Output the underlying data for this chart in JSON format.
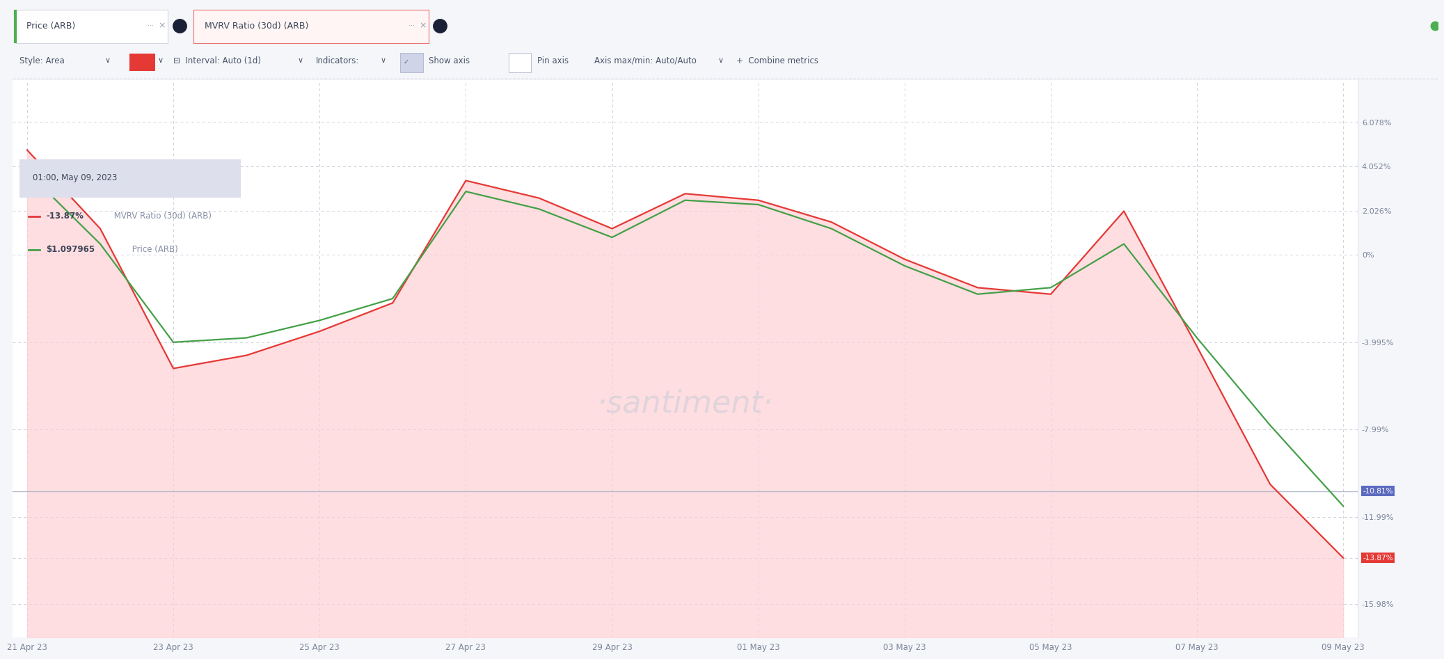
{
  "x_tick_labels": [
    "21 Apr 23",
    "23 Apr 23",
    "25 Apr 23",
    "27 Apr 23",
    "29 Apr 23",
    "01 May 23",
    "03 May 23",
    "05 May 23",
    "07 May 23",
    "09 May 23"
  ],
  "x_tick_positions": [
    0,
    2,
    4,
    6,
    8,
    10,
    12,
    14,
    16,
    18
  ],
  "mvrv_data": [
    4.8,
    1.2,
    -5.2,
    -4.6,
    -3.5,
    -2.2,
    3.4,
    2.6,
    1.2,
    2.8,
    2.5,
    1.5,
    -0.2,
    -1.5,
    -1.8,
    2.0,
    -4.2,
    -10.5,
    -13.87
  ],
  "price_data": [
    3.8,
    0.5,
    -4.0,
    -3.8,
    -3.0,
    -2.0,
    2.9,
    2.1,
    0.8,
    2.5,
    2.3,
    1.2,
    -0.5,
    -1.8,
    -1.5,
    0.5,
    -3.8,
    -7.8,
    -11.5
  ],
  "mvrv_color": "#e53935",
  "price_color": "#43a047",
  "fill_color": "#ffcdd2",
  "grid_color": "#c8cdd8",
  "bg_color": "#ffffff",
  "outer_bg": "#f5f6fa",
  "yticks": [
    6.078,
    4.052,
    2.026,
    0.0,
    -3.995,
    -7.99,
    -10.81,
    -11.99,
    -13.87,
    -15.98
  ],
  "ytick_labels": [
    "6.078%",
    "4.052%",
    "2.026%",
    "0%",
    "-3.995%",
    "-7.99%",
    "-10.81%",
    "-11.99%",
    "-13.87%",
    "-15.98%"
  ],
  "ylim": [
    -17.5,
    8.0
  ],
  "highlight_line_y": -10.81,
  "highlight_label": "-10.81%",
  "highlight_label_color": "#5c6bc0",
  "final_mvrv_y": -13.87,
  "final_mvrv_label": "-13.87%",
  "final_mvrv_color": "#e53935",
  "tooltip_date": "01:00, May 09, 2023",
  "tooltip_mvrv": "-13.87%",
  "tooltip_mvrv_suffix": " MVRV Ratio (30d) (ARB)",
  "tooltip_price": "$1.097965",
  "tooltip_price_suffix": " Price (ARB)",
  "header_tab1": "Price (ARB)",
  "header_tab2": "MVRV Ratio (30d) (ARB)",
  "santiment_text": "·santiment·",
  "green_dot_color": "#4caf50",
  "tab2_border_color": "#e57373",
  "tab2_bg_color": "#fff5f5"
}
